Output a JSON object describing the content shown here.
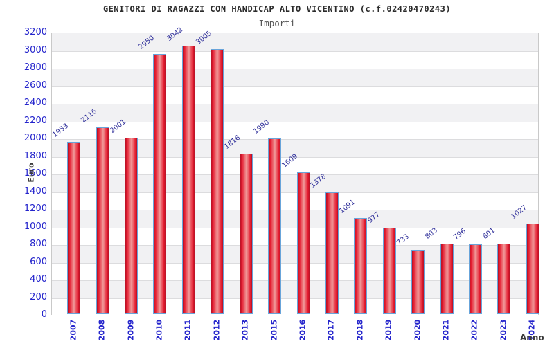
{
  "chart_data": {
    "type": "bar",
    "title": "GENITORI DI RAGAZZI CON HANDICAP ALTO VICENTINO (c.f.02420470243)",
    "subtitle": "Importi",
    "xlabel": "Anno",
    "ylabel": "Euro",
    "categories": [
      "2007",
      "2008",
      "2009",
      "2010",
      "2011",
      "2012",
      "2013",
      "2015",
      "2016",
      "2017",
      "2018",
      "2019",
      "2020",
      "2021",
      "2022",
      "2023",
      "2024"
    ],
    "values": [
      1953,
      2116,
      2001,
      2950,
      3042,
      3005,
      1816,
      1990,
      1609,
      1378,
      1091,
      977,
      733,
      803,
      796,
      801,
      1027
    ],
    "ylim": [
      0,
      3200
    ],
    "ytick_step": 200,
    "grid": "horizontal lines every 200 with alternating gray/white bands",
    "legend": "none",
    "colors": {
      "title": "#2b2b2b",
      "subtitle": "#555555",
      "axis_tick_label": "#2424cc",
      "value_label": "#31319b",
      "axis_title": "#3b3b3b",
      "bar_fill_edge": "#e51a2e",
      "bar_fill_mid": "#f09a9a",
      "bar_border": "#68a4da",
      "band_fill": "#f1f1f3",
      "gridline": "#dcdcde",
      "plot_border": "#c9c9c9",
      "background": "#ffffff"
    }
  }
}
